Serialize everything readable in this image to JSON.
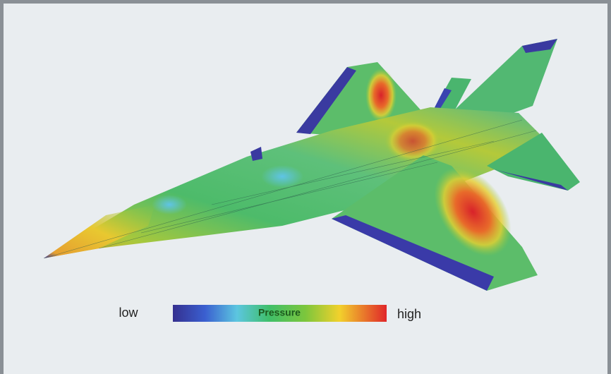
{
  "legend": {
    "low_label": "low",
    "title": "Pressure",
    "high_label": "high"
  }
}
